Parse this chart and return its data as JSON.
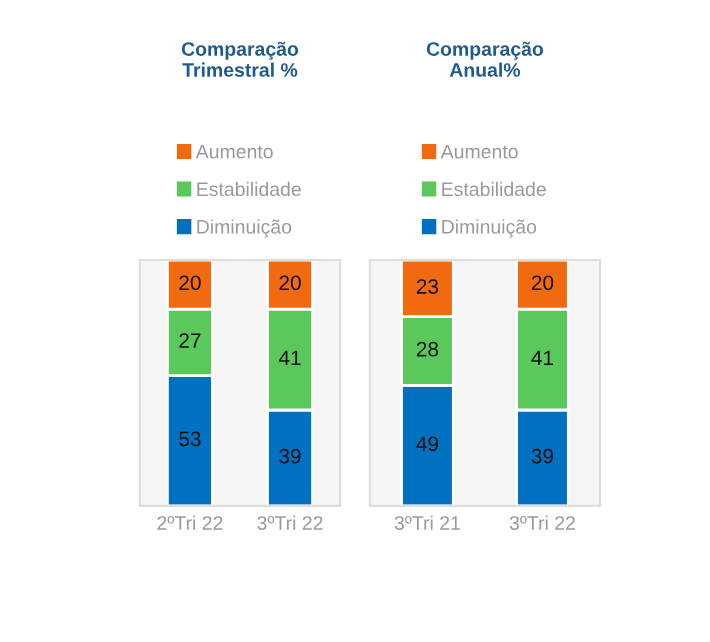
{
  "chart_data": [
    {
      "type": "bar",
      "title": "Comparação\nTrimestral %",
      "categories": [
        "2ºTri 22",
        "3ºTri 22"
      ],
      "stacked": true,
      "data_labels": true,
      "legend": "top",
      "tick_labels": "x",
      "series": [
        {
          "name": "Diminuição",
          "color": "#0070c0",
          "values": [
            53,
            39
          ]
        },
        {
          "name": "Estabilidade",
          "color": "#5bc85b",
          "values": [
            27,
            41
          ]
        },
        {
          "name": "Aumento",
          "color": "#f26a10",
          "values": [
            20,
            20
          ]
        }
      ]
    },
    {
      "type": "bar",
      "title": "Comparação\nAnual%",
      "categories": [
        "3ºTri 21",
        "3ºTri 22"
      ],
      "stacked": true,
      "data_labels": true,
      "legend": "top",
      "tick_labels": "x",
      "series": [
        {
          "name": "Diminuição",
          "color": "#0070c0",
          "values": [
            49,
            39
          ]
        },
        {
          "name": "Estabilidade",
          "color": "#5bc85b",
          "values": [
            28,
            41
          ]
        },
        {
          "name": "Aumento",
          "color": "#f26a10",
          "values": [
            23,
            20
          ]
        }
      ]
    }
  ]
}
